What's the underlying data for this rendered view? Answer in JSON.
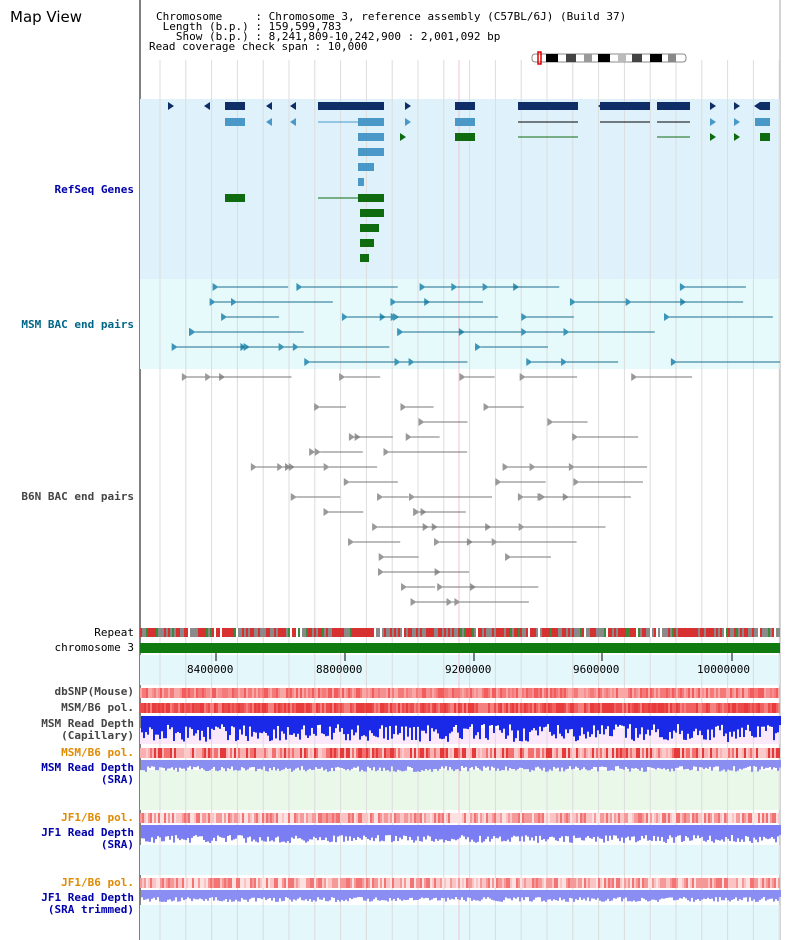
{
  "header": {
    "title": "Map View",
    "info_lines": [
      "Chromosome     : Chromosome 3, reference assembly (C57BL/6J) (Build 37)",
      " Length (b.p.) : 159,599,783",
      "   Show (b.p.) : 8,241,809-10,242,900 : 2,001,092 bp",
      "Read coverage check span : 10,000"
    ]
  },
  "tracks": {
    "refseq": "RefSeq Genes",
    "msm_bac": "MSM BAC end pairs",
    "b6n_bac": "B6N BAC end pairs",
    "repeat": "Repeat",
    "chromosome": "chromosome 3",
    "dbsnp": "dbSNP(Mouse)",
    "msm_b6_pol": "MSM/B6 pol.",
    "msm_read_depth_cap_1": "MSM Read Depth",
    "msm_read_depth_cap_2": "(Capillary)",
    "msm_b6_pol_sra": "MSM/B6 pol.",
    "msm_read_depth_sra_1": "MSM Read Depth",
    "msm_read_depth_sra_2": "(SRA)",
    "jf1_b6_pol": "JF1/B6 pol.",
    "jf1_read_depth_1": "JF1 Read Depth",
    "jf1_read_depth_2": "(SRA)",
    "jf1_b6_pol_trim": "JF1/B6 pol.",
    "jf1_read_depth_trim_1": "JF1 Read Depth",
    "jf1_read_depth_trim_2": "(SRA trimmed)"
  },
  "axis": {
    "ticks": [
      "8400000",
      "8800000",
      "9200000",
      "9600000",
      "10000000"
    ]
  },
  "colors": {
    "refseq_bg": "#dff2fb",
    "msm_bg": "#e6f9fb",
    "gene_dark": "#0f2d66",
    "gene_mid": "#4a98c8",
    "gene_green": "#0f6b0f",
    "chrom_green": "#0f7a0f"
  }
}
